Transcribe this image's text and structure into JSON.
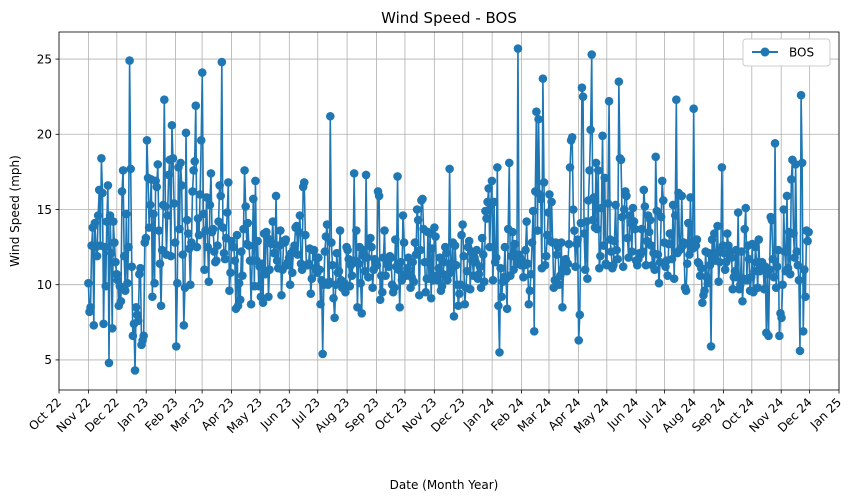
{
  "chart_data": {
    "type": "line",
    "title": "Wind Speed - BOS",
    "xlabel": "Date (Month Year)",
    "ylabel": "Wind Speed (mph)",
    "x_ticks": [
      "Oct 22",
      "Nov 22",
      "Dec 22",
      "Jan 23",
      "Feb 23",
      "Mar 23",
      "Apr 23",
      "May 23",
      "Jun 23",
      "Jul 23",
      "Aug 23",
      "Sep 23",
      "Oct 23",
      "Nov 23",
      "Dec 23",
      "Jan 24",
      "Feb 24",
      "Mar 24",
      "Apr 24",
      "May 24",
      "Jun 24",
      "Jul 24",
      "Aug 24",
      "Sep 24",
      "Oct 24",
      "Nov 24",
      "Dec 24",
      "Jan 25"
    ],
    "y_ticks": [
      5,
      10,
      15,
      20,
      25
    ],
    "xlim": [
      "2022-10-01",
      "2025-01-01"
    ],
    "ylim": [
      3.0,
      26.8
    ],
    "grid": true,
    "legend_position": "top-right",
    "series": [
      {
        "name": "BOS",
        "color": "#1f77b4",
        "marker": "circle",
        "x_start": "2022-11-01",
        "x_end": "2024-11-30",
        "x_step": "daily",
        "values": [
          10.1,
          8.2,
          8.5,
          12.6,
          13.8,
          7.3,
          14.1,
          12.5,
          11.9,
          14.6,
          16.3,
          12.6,
          18.4,
          16.1,
          7.4,
          12.5,
          9.9,
          14.2,
          16.6,
          4.8,
          14.6,
          12.1,
          7.1,
          14.2,
          12.8,
          11.5,
          10.7,
          10.3,
          8.6,
          9.9,
          8.9,
          16.2,
          17.6,
          11.9,
          9.6,
          14.7,
          10.1,
          12.5,
          24.9,
          17.7,
          11.2,
          6.6,
          7.4,
          4.3,
          8.5,
          8.0,
          7.6,
          10.7,
          11.1,
          6.0,
          6.3,
          6.6,
          12.8,
          13.1,
          19.6,
          17.1,
          13.8,
          15.3,
          17.0,
          9.2,
          14.7,
          10.1,
          16.9,
          16.5,
          18.0,
          13.6,
          11.4,
          8.6,
          12.3,
          15.3,
          22.3,
          15.2,
          12.0,
          14.6,
          17.3,
          18.3,
          11.9,
          20.6,
          18.4,
          15.4,
          12.8,
          5.9,
          10.1,
          17.8,
          13.7,
          18.1,
          16.6,
          12.0,
          7.3,
          9.8,
          20.1,
          14.3,
          13.4,
          12.4,
          10.0,
          12.8,
          16.2,
          17.6,
          18.2,
          21.9,
          12.5,
          14.4,
          13.3,
          16.0,
          19.6,
          24.1,
          14.7,
          11.0,
          13.6,
          15.8,
          12.5,
          10.2,
          15.3,
          17.4,
          13.5,
          13.7,
          12.2,
          11.5,
          11.6,
          12.6,
          14.2,
          16.6,
          15.9,
          24.8,
          13.8,
          12.1,
          11.7,
          13.1,
          14.8,
          16.8,
          9.6,
          10.8,
          12.9,
          12.5,
          12.5,
          11.6,
          8.4,
          13.3,
          8.6,
          10.1,
          9.0,
          12.2,
          10.6,
          13.7,
          17.6,
          15.2,
          12.7,
          14.1,
          12.6,
          11.6,
          8.7,
          11.6,
          15.7,
          9.9,
          16.9,
          11.6,
          12.9,
          9.9,
          11.2,
          9.2,
          11.4,
          8.8,
          13.4,
          10.7,
          13.5,
          13.1,
          9.2,
          11.0,
          12.8,
          12.7,
          14.2,
          12.1,
          12.1,
          15.9,
          11.6,
          11.1,
          12.6,
          13.6,
          9.3,
          11.0,
          12.9,
          12.8,
          13.0,
          11.3,
          11.5,
          11.8,
          10.0,
          12.1,
          10.8,
          12.3,
          12.6,
          13.8,
          13.9,
          12.0,
          13.5,
          14.6,
          11.4,
          11.0,
          16.5,
          16.8,
          13.3,
          11.3,
          11.3,
          11.4,
          12.4,
          9.4,
          10.4,
          12.3,
          12.3,
          11.1,
          11.8,
          10.8,
          11.8,
          11.0,
          8.7,
          10.3,
          5.4,
          10.0,
          12.2,
          13.2,
          14.0,
          10.0,
          10.2,
          21.2,
          12.8,
          11.3,
          9.1,
          7.8,
          10.0,
          12.1,
          10.8,
          10.9,
          13.6,
          10.3,
          9.8,
          9.8,
          10.1,
          9.5,
          12.5,
          12.3,
          11.7,
          9.9,
          11.3,
          10.6,
          11.5,
          17.4,
          11.6,
          13.6,
          8.5,
          11.4,
          12.5,
          10.1,
          8.1,
          12.3,
          11.9,
          10.9,
          17.3,
          11.8,
          10.5,
          12.6,
          13.1,
          12.5,
          9.8,
          11.0,
          11.7,
          11.5,
          11.3,
          16.2,
          15.9,
          9.0,
          10.6,
          9.5,
          11.8,
          13.6,
          10.6,
          11.4,
          11.3,
          11.2,
          11.9,
          11.8,
          10.0,
          9.5,
          9.8,
          13.0,
          11.2,
          17.2,
          11.0,
          8.5,
          11.5,
          10.3,
          14.6,
          12.8,
          10.7,
          10.6,
          11.1,
          11.8,
          10.7,
          9.8,
          10.5,
          11.5,
          10.2,
          12.8,
          12.0,
          15.0,
          14.3,
          9.3,
          12.3,
          15.6,
          15.7,
          13.7,
          11.5,
          9.5,
          10.4,
          13.5,
          10.4,
          13.4,
          9.1,
          12.4,
          10.3,
          13.8,
          13.2,
          10.6,
          10.3,
          11.1,
          11.8,
          9.6,
          9.9,
          10.7,
          11.5,
          12.5,
          12.1,
          10.3,
          10.7,
          17.7,
          11.4,
          11.1,
          12.8,
          7.9,
          12.6,
          11.3,
          10.0,
          8.6,
          9.4,
          10.0,
          13.3,
          14.0,
          11.9,
          8.7,
          9.8,
          10.9,
          12.5,
          12.9,
          9.7,
          12.2,
          11.6,
          10.6,
          11.8,
          11.5,
          12.3,
          10.4,
          10.7,
          11.2,
          9.8,
          13.1,
          12.0,
          10.2,
          14.9,
          14.4,
          15.5,
          16.4,
          12.5,
          15.3,
          16.9,
          10.3,
          15.5,
          11.5,
          11.8,
          17.8,
          8.6,
          5.5,
          11.1,
          9.2,
          10.2,
          10.5,
          12.5,
          10.4,
          8.4,
          13.7,
          18.1,
          10.6,
          11.9,
          13.5,
          11.0,
          12.7,
          11.9,
          11.4,
          25.7,
          12.0,
          11.8,
          11.3,
          11.6,
          10.5,
          11.3,
          12.3,
          14.2,
          11.4,
          8.7,
          9.6,
          10.7,
          12.8,
          14.9,
          6.9,
          16.2,
          21.5,
          13.6,
          21.0,
          16.0,
          15.7,
          11.1,
          23.7,
          16.8,
          11.3,
          11.9,
          13.3,
          14.8,
          16.0,
          12.9,
          15.5,
          12.8,
          9.8,
          10.3,
          12.8,
          12.0,
          12.5,
          10.0,
          10.6,
          12.8,
          8.5,
          11.1,
          11.3,
          11.7,
          10.9,
          11.4,
          12.7,
          17.8,
          19.6,
          19.8,
          15.0,
          13.6,
          11.2,
          12.7,
          13.0,
          6.3,
          8.0,
          14.1,
          23.1,
          22.5,
          13.4,
          11.0,
          14.2,
          10.4,
          15.6,
          17.6,
          20.3,
          25.3,
          14.3,
          15.8,
          13.8,
          18.1,
          13.7,
          17.6,
          11.1,
          11.9,
          15.1,
          19.9,
          12.6,
          17.1,
          11.4,
          11.3,
          15.4,
          22.2,
          13.0,
          12.2,
          11.1,
          11.3,
          12.9,
          15.3,
          12.3,
          11.7,
          23.5,
          18.4,
          18.3,
          14.5,
          11.2,
          15.0,
          16.2,
          15.9,
          13.1,
          11.8,
          14.6,
          14.1,
          12.2,
          15.1,
          14.2,
          13.7,
          11.6,
          11.3,
          11.7,
          12.1,
          12.0,
          13.7,
          12.2,
          16.3,
          15.2,
          11.3,
          12.9,
          14.6,
          13.5,
          14.3,
          12.6,
          11.3,
          12.1,
          11.0,
          18.5,
          14.9,
          12.0,
          10.1,
          11.5,
          14.5,
          16.9,
          15.6,
          12.8,
          11.2,
          11.6,
          10.6,
          12.7,
          13.4,
          13.4,
          11.7,
          15.3,
          10.4,
          14.6,
          22.3,
          12.1,
          16.1,
          12.3,
          12.4,
          15.9,
          12.6,
          12.8,
          9.8,
          9.6,
          11.4,
          14.1,
          12.0,
          15.8,
          12.8,
          12.4,
          21.7,
          12.5,
          12.6,
          13.0,
          11.5,
          11.4,
          10.6,
          11.1,
          8.8,
          9.3,
          9.6,
          12.2,
          10.5,
          10.1,
          12.1,
          11.3,
          5.9,
          13.0,
          11.8,
          13.4,
          11.6,
          12.1,
          13.9,
          10.2,
          11.5,
          12.3,
          17.8,
          12.6,
          12.1,
          11.0,
          11.5,
          13.4,
          12.6,
          12.2,
          11.9,
          11.8,
          9.7,
          10.5,
          10.9,
          12.3,
          10.5,
          14.8,
          9.7,
          10.0,
          12.2,
          8.9,
          10.4,
          13.7,
          15.1,
          10.3,
          12.6,
          11.7,
          9.6,
          10.5,
          12.7,
          9.5,
          10.9,
          12.5,
          11.5,
          9.8,
          13.0,
          10.9,
          11.1,
          11.5,
          11.2,
          9.7,
          11.2,
          6.8,
          10.7,
          6.6,
          11.0,
          14.5,
          14.3,
          11.7,
          10.5,
          19.4,
          9.8,
          11.2,
          12.3,
          6.6,
          8.1,
          7.8,
          10.0,
          15.0,
          12.2,
          10.9,
          15.9,
          11.1,
          13.5,
          10.7,
          17.0,
          18.3,
          13.4,
          11.8,
          18.0,
          12.2,
          11.3,
          10.3,
          5.6,
          22.6,
          18.1,
          6.9,
          11.0,
          9.2,
          13.6,
          12.9,
          13.5
        ]
      }
    ]
  }
}
